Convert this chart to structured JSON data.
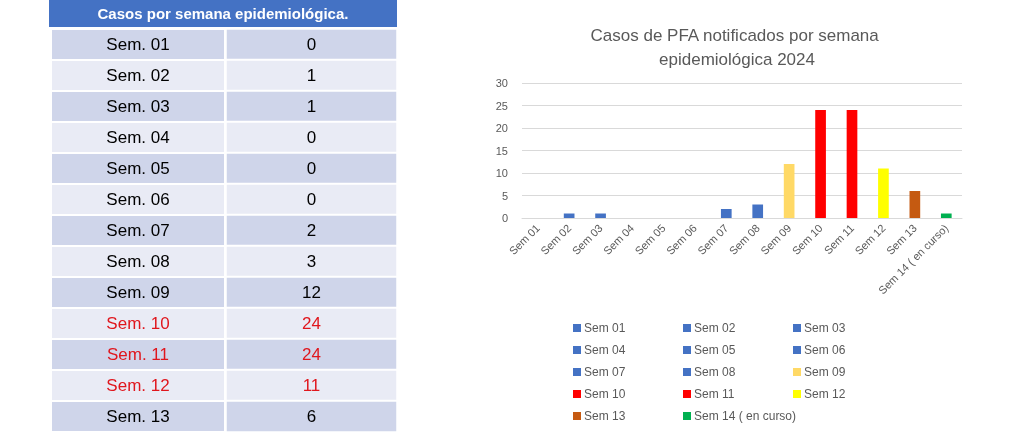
{
  "chart_data": [
    {
      "type": "heatmap",
      "title": "Casos por semana epidemiológica.",
      "categories": [
        null
      ],
      "y_categories": [
        "Sem. 01",
        "Sem. 02",
        "Sem. 03",
        "Sem. 04",
        "Sem. 05",
        "Sem. 06",
        "Sem. 07",
        "Sem. 08",
        "Sem. 09",
        "Sem. 10",
        "Sem. 11",
        "Sem. 12",
        "Sem. 13"
      ],
      "cells": [
        [
          0
        ],
        [
          1
        ],
        [
          1
        ],
        [
          0
        ],
        [
          0
        ],
        [
          0
        ],
        [
          2
        ],
        [
          3
        ],
        [
          12
        ],
        [
          24
        ],
        [
          24
        ],
        [
          11
        ],
        [
          6
        ]
      ],
      "colors": [
        "#000000",
        "#000000",
        "#000000",
        "#000000",
        "#000000",
        "#000000",
        "#000000",
        "#000000",
        "#000000",
        "#e0161d",
        "#e0161d",
        "#e0161d",
        "#000000"
      ],
      "data_labels": true
    },
    {
      "type": "bar",
      "title": "Casos de PFA notificados por semana epidemiológica 2024",
      "categories": [
        "Sem 01",
        "Sem 02",
        "Sem 03",
        "Sem 04",
        "Sem 05",
        "Sem 06",
        "Sem 07",
        "Sem 08",
        "Sem 09",
        "Sem 10",
        "Sem 11",
        "Sem 12",
        "Sem 13",
        "Sem 14 ( en curso)"
      ],
      "series": [
        {
          "name": "Sem 01",
          "color": "#4472c4",
          "values": [
            0,
            null,
            null,
            null,
            null,
            null,
            null,
            null,
            null,
            null,
            null,
            null,
            null,
            null
          ]
        },
        {
          "name": "Sem 02",
          "color": "#4472c4",
          "values": [
            null,
            1,
            null,
            null,
            null,
            null,
            null,
            null,
            null,
            null,
            null,
            null,
            null,
            null
          ]
        },
        {
          "name": "Sem 03",
          "color": "#4472c4",
          "values": [
            null,
            null,
            1,
            null,
            null,
            null,
            null,
            null,
            null,
            null,
            null,
            null,
            null,
            null
          ]
        },
        {
          "name": "Sem 04",
          "color": "#4472c4",
          "values": [
            null,
            null,
            null,
            0,
            null,
            null,
            null,
            null,
            null,
            null,
            null,
            null,
            null,
            null
          ]
        },
        {
          "name": "Sem 05",
          "color": "#4472c4",
          "values": [
            null,
            null,
            null,
            null,
            0,
            null,
            null,
            null,
            null,
            null,
            null,
            null,
            null,
            null
          ]
        },
        {
          "name": "Sem 06",
          "color": "#4472c4",
          "values": [
            null,
            null,
            null,
            null,
            null,
            0,
            null,
            null,
            null,
            null,
            null,
            null,
            null,
            null
          ]
        },
        {
          "name": "Sem 07",
          "color": "#4472c4",
          "values": [
            null,
            null,
            null,
            null,
            null,
            null,
            2,
            null,
            null,
            null,
            null,
            null,
            null,
            null
          ]
        },
        {
          "name": "Sem 08",
          "color": "#4472c4",
          "values": [
            null,
            null,
            null,
            null,
            null,
            null,
            null,
            3,
            null,
            null,
            null,
            null,
            null,
            null
          ]
        },
        {
          "name": "Sem 09",
          "color": "#ffd966",
          "values": [
            null,
            null,
            null,
            null,
            null,
            null,
            null,
            null,
            12,
            null,
            null,
            null,
            null,
            null
          ]
        },
        {
          "name": "Sem 10",
          "color": "#ff0000",
          "values": [
            null,
            null,
            null,
            null,
            null,
            null,
            null,
            null,
            null,
            24,
            null,
            null,
            null,
            null
          ]
        },
        {
          "name": "Sem 11",
          "color": "#ff0000",
          "values": [
            null,
            null,
            null,
            null,
            null,
            null,
            null,
            null,
            null,
            null,
            24,
            null,
            null,
            null
          ]
        },
        {
          "name": "Sem 12",
          "color": "#ffff00",
          "values": [
            null,
            null,
            null,
            null,
            null,
            null,
            null,
            null,
            null,
            null,
            null,
            11,
            null,
            null
          ]
        },
        {
          "name": "Sem 13",
          "color": "#c55a11",
          "values": [
            null,
            null,
            null,
            null,
            null,
            null,
            null,
            null,
            null,
            null,
            null,
            null,
            6,
            null
          ]
        },
        {
          "name": "Sem 14 ( en curso)",
          "color": "#00b050",
          "values": [
            null,
            null,
            null,
            null,
            null,
            null,
            null,
            null,
            null,
            null,
            null,
            null,
            null,
            1
          ]
        }
      ],
      "ylim": [
        0,
        30
      ],
      "yticks": [
        0,
        5,
        10,
        15,
        20,
        25,
        30
      ],
      "grid": "y",
      "legend": "bottom"
    }
  ]
}
